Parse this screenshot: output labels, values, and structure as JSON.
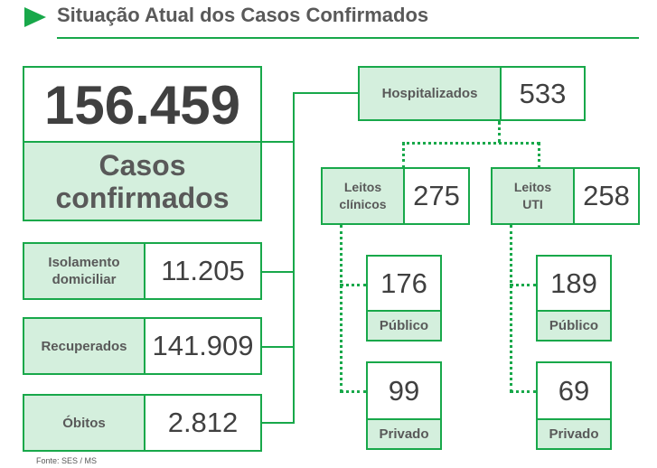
{
  "title": "Situação Atual dos Casos Confirmados",
  "source": "Fonte: SES / MS",
  "colors": {
    "accent": "#18a84a",
    "fill": "#d4efdd",
    "text": "#404040"
  },
  "total": {
    "value": "156.459",
    "label_line1": "Casos",
    "label_line2": "confirmados"
  },
  "isolamento": {
    "label_line1": "Isolamento",
    "label_line2": "domiciliar",
    "value": "11.205"
  },
  "recuperados": {
    "label": "Recuperados",
    "value": "141.909"
  },
  "obitos": {
    "label": "Óbitos",
    "value": "2.812"
  },
  "hospitalizados": {
    "label": "Hospitalizados",
    "value": "533"
  },
  "leitos_clinicos": {
    "label_line1": "Leitos",
    "label_line2": "clínicos",
    "value": "275",
    "publico": {
      "value": "176",
      "label": "Público"
    },
    "privado": {
      "value": "99",
      "label": "Privado"
    }
  },
  "leitos_uti": {
    "label_line1": "Leitos",
    "label_line2": "UTI",
    "value": "258",
    "publico": {
      "value": "189",
      "label": "Público"
    },
    "privado": {
      "value": "69",
      "label": "Privado"
    }
  }
}
